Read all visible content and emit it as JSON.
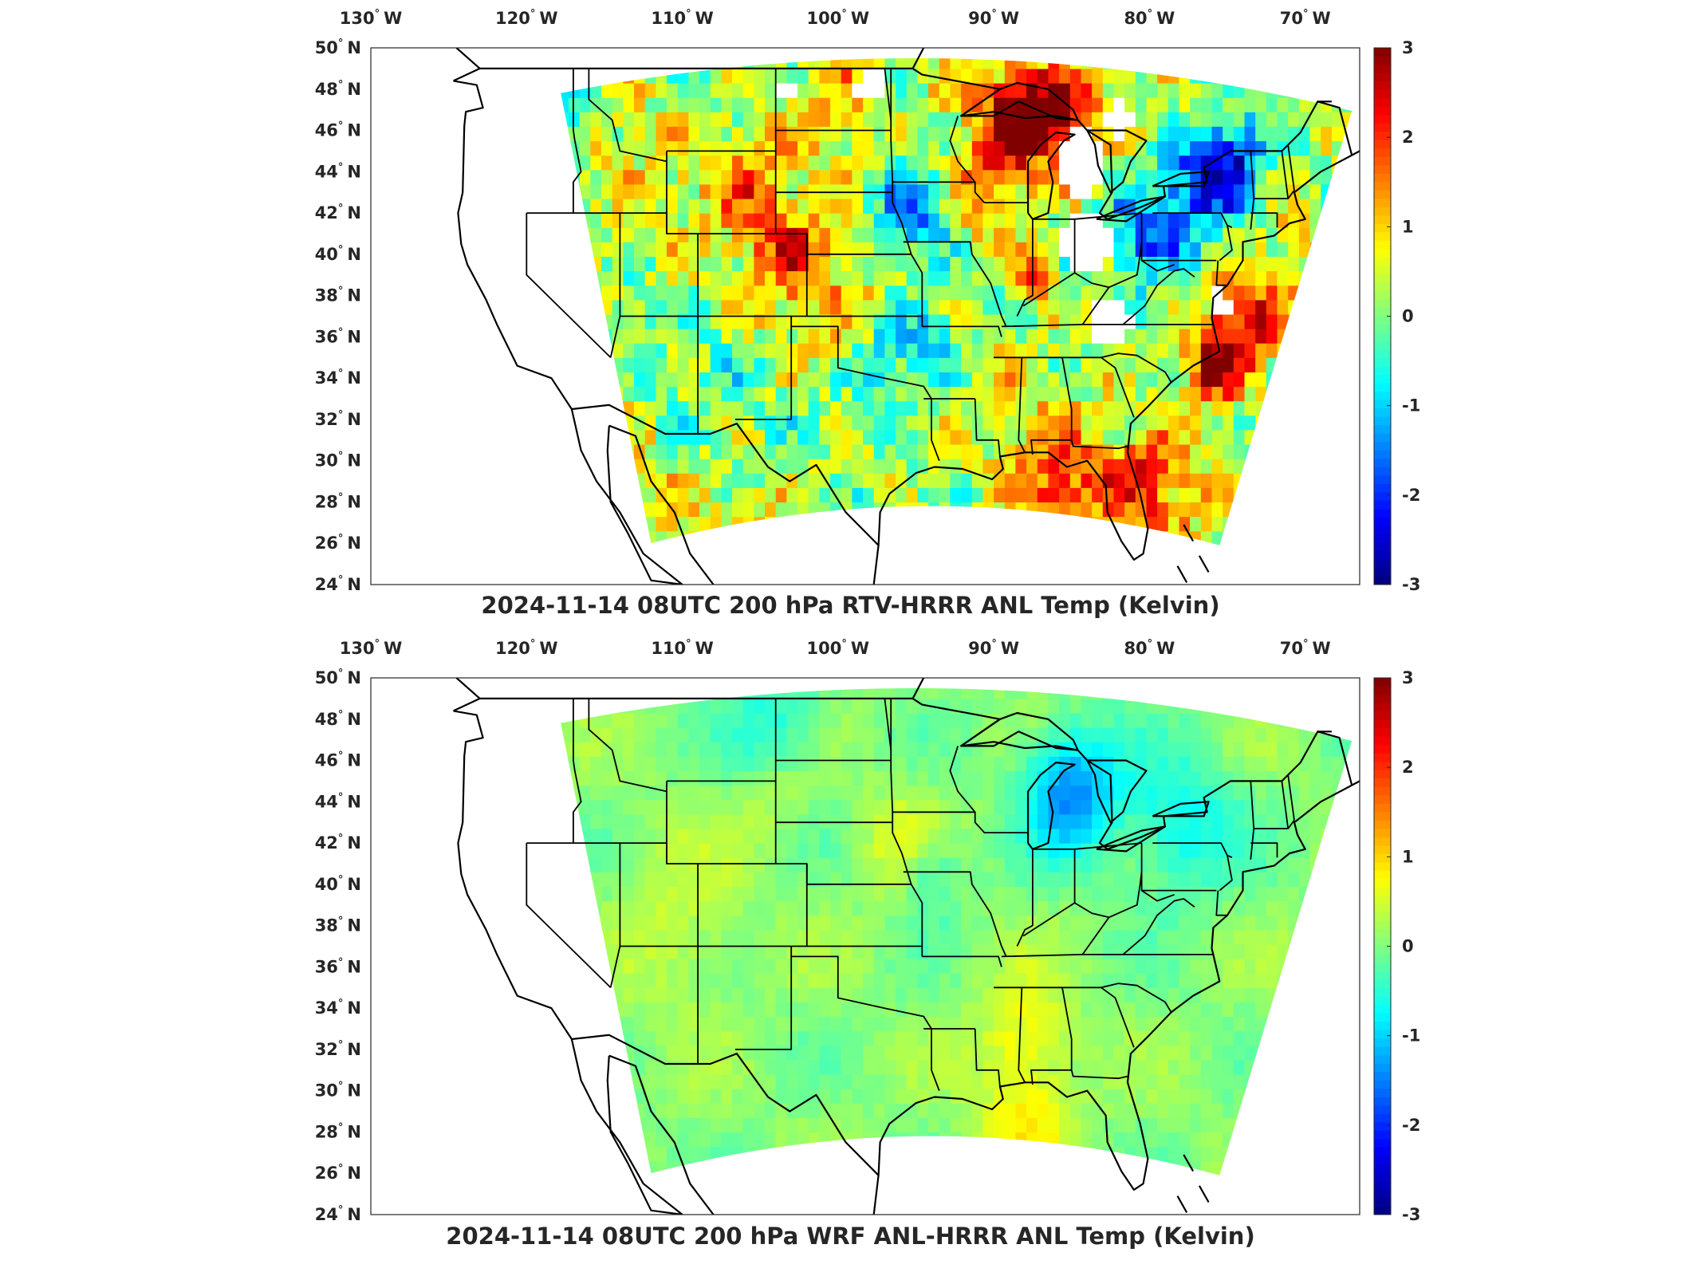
{
  "panels": [
    {
      "title": "2024-11-14 08UTC 200 hPa RTV-HRRR ANL Temp (Kelvin)",
      "field_style": "noisy",
      "anomalies": [
        {
          "lon": -88.5,
          "lat": 46.5,
          "value": 2.4,
          "radius_deg": 2.5
        },
        {
          "lon": -85.5,
          "lat": 46.8,
          "value": 2.0,
          "radius_deg": 2.0
        },
        {
          "lon": -77.0,
          "lat": 43.0,
          "value": -2.3,
          "radius_deg": 3.0
        },
        {
          "lon": -74.5,
          "lat": 44.5,
          "value": -2.0,
          "radius_deg": 2.0
        },
        {
          "lon": -80.5,
          "lat": 41.0,
          "value": -1.8,
          "radius_deg": 2.5
        },
        {
          "lon": -117.5,
          "lat": 46.8,
          "value": -1.8,
          "radius_deg": 1.8
        },
        {
          "lon": -95.0,
          "lat": 42.0,
          "value": -1.6,
          "radius_deg": 2.5
        },
        {
          "lon": -94.0,
          "lat": 35.5,
          "value": -1.4,
          "radius_deg": 2.5
        },
        {
          "lon": -97.0,
          "lat": 35.0,
          "value": -1.0,
          "radius_deg": 2.0
        },
        {
          "lon": -74.0,
          "lat": 36.5,
          "value": 2.0,
          "radius_deg": 2.5
        },
        {
          "lon": -76.0,
          "lat": 34.5,
          "value": 2.2,
          "radius_deg": 1.8
        },
        {
          "lon": -87.5,
          "lat": 39.0,
          "value": 2.0,
          "radius_deg": 1.3
        },
        {
          "lon": -91.0,
          "lat": 43.0,
          "value": 1.5,
          "radius_deg": 2.5
        },
        {
          "lon": -86.0,
          "lat": 28.0,
          "value": 1.7,
          "radius_deg": 3.0
        },
        {
          "lon": -80.0,
          "lat": 29.0,
          "value": 1.5,
          "radius_deg": 2.5
        },
        {
          "lon": -103.0,
          "lat": 40.0,
          "value": 1.2,
          "radius_deg": 3.0
        },
        {
          "lon": -106.0,
          "lat": 44.0,
          "value": 1.0,
          "radius_deg": 2.5
        },
        {
          "lon": -109.0,
          "lat": 33.0,
          "value": -0.3,
          "radius_deg": 4.0
        },
        {
          "lon": -100.0,
          "lat": 47.0,
          "value": 0.9,
          "radius_deg": 3.0
        }
      ],
      "missing_regions": [
        {
          "lon": -84.5,
          "lat": 44.5,
          "radius_deg": 1.6
        },
        {
          "lon": -84.0,
          "lat": 40.5,
          "radius_deg": 1.6
        },
        {
          "lon": -82.5,
          "lat": 36.8,
          "radius_deg": 1.3
        },
        {
          "lon": -75.5,
          "lat": 37.5,
          "radius_deg": 0.7
        },
        {
          "lon": -98.0,
          "lat": 48.2,
          "radius_deg": 0.8
        },
        {
          "lon": -103.5,
          "lat": 48.0,
          "radius_deg": 0.6
        },
        {
          "lon": -82.0,
          "lat": 46.5,
          "radius_deg": 0.9
        }
      ]
    },
    {
      "title": "2024-11-14 08UTC 200 hPa WRF ANL-HRRR ANL Temp (Kelvin)",
      "field_style": "smooth",
      "anomalies": [
        {
          "lon": -85.0,
          "lat": 44.5,
          "value": -1.5,
          "radius_deg": 3.0
        },
        {
          "lon": -78.0,
          "lat": 43.0,
          "value": -0.8,
          "radius_deg": 3.5
        },
        {
          "lon": -104.0,
          "lat": 48.0,
          "value": -0.6,
          "radius_deg": 3.0
        },
        {
          "lon": -94.0,
          "lat": 40.5,
          "value": -0.6,
          "radius_deg": 2.0
        },
        {
          "lon": -88.0,
          "lat": 32.5,
          "value": 0.7,
          "radius_deg": 3.0
        },
        {
          "lon": -88.0,
          "lat": 28.0,
          "value": 0.7,
          "radius_deg": 3.0
        },
        {
          "lon": -96.0,
          "lat": 42.0,
          "value": 0.5,
          "radius_deg": 2.5
        },
        {
          "lon": -110.0,
          "lat": 38.0,
          "value": 0.4,
          "radius_deg": 4.0
        },
        {
          "lon": -104.0,
          "lat": 44.0,
          "value": 0.3,
          "radius_deg": 2.0
        }
      ],
      "missing_regions": []
    }
  ],
  "lon_ticks": [
    "130",
    "120",
    "110",
    "100",
    "90",
    "80",
    "70"
  ],
  "lon_values": [
    -130,
    -120,
    -110,
    -100,
    -90,
    -80,
    -70
  ],
  "lon_suffix": "W",
  "lat_ticks": [
    "50",
    "48",
    "46",
    "44",
    "42",
    "40",
    "38",
    "36",
    "34",
    "32",
    "30",
    "28",
    "26",
    "24"
  ],
  "lat_values": [
    50,
    48,
    46,
    44,
    42,
    40,
    38,
    36,
    34,
    32,
    30,
    28,
    26,
    24
  ],
  "lat_suffix": "N",
  "degree_symbol": "°",
  "colorbar": {
    "ticks": [
      "3",
      "2",
      "1",
      "0",
      "-1",
      "-2",
      "-3"
    ],
    "tick_values": [
      3,
      2,
      1,
      0,
      -1,
      -2,
      -3
    ],
    "min": -3,
    "max": 3,
    "colormap": "jet"
  },
  "colors": {
    "missing": "#ffffff",
    "coastline": "#000000",
    "axis": "#262626"
  }
}
